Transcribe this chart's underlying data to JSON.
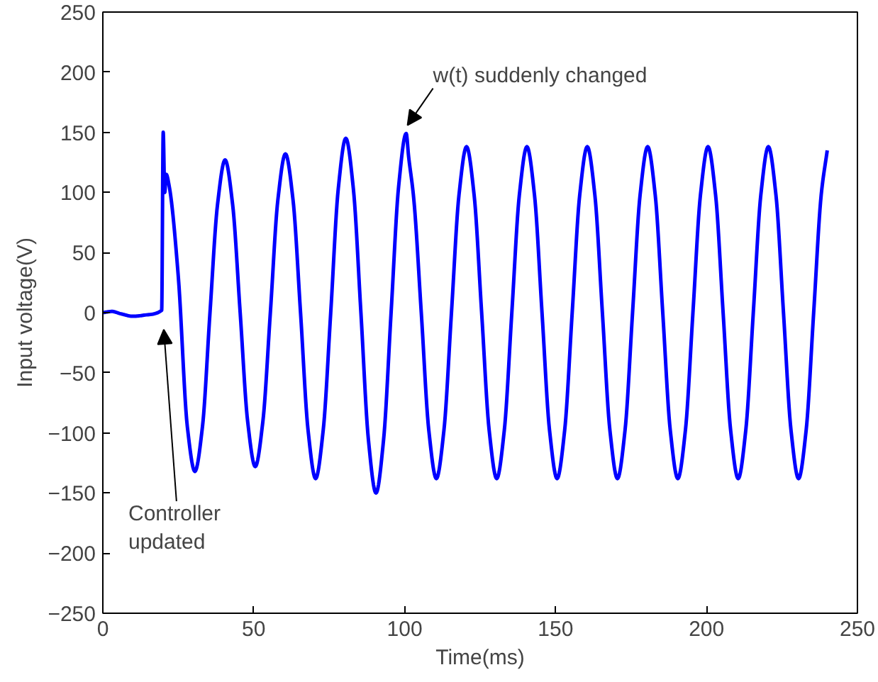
{
  "chart_data": {
    "type": "line",
    "xlabel": "Time(ms)",
    "ylabel": "Input voltage(V)",
    "xlim": [
      0,
      250
    ],
    "ylim": [
      -250,
      250
    ],
    "xticks": [
      0,
      50,
      100,
      150,
      200,
      250
    ],
    "yticks": [
      -250,
      -200,
      -150,
      -100,
      -50,
      0,
      50,
      100,
      150,
      200,
      250
    ],
    "grid": false,
    "marker": "none",
    "line_style": "solid",
    "series": [
      {
        "color": "#0000ff",
        "x": [
          0,
          3,
          6,
          10,
          14,
          19.5,
          20,
          20.5,
          21,
          22,
          25,
          28,
          30.5,
          33,
          35.5,
          38,
          40.5,
          43,
          45.5,
          48,
          50.5,
          53,
          55.5,
          58,
          60.5,
          63,
          65.5,
          68,
          70.5,
          73,
          75.5,
          78,
          80.5,
          83,
          85.5,
          88,
          90.5,
          93,
          95.5,
          98,
          100.5,
          101.3,
          103,
          105.5,
          108,
          110.5,
          113,
          115.5,
          118,
          120.5,
          123,
          125.5,
          128,
          130.5,
          133,
          135.5,
          138,
          140.5,
          143,
          145.5,
          148,
          150.5,
          153,
          155.5,
          158,
          160.5,
          163,
          165.5,
          168,
          170.5,
          173,
          175.5,
          178,
          180.5,
          183,
          185.5,
          188,
          190.5,
          193,
          195.5,
          198,
          200.5,
          203,
          205.5,
          208,
          210.5,
          213,
          215.5,
          218,
          220.5,
          223,
          225.5,
          228,
          230.5,
          233,
          235.5,
          238,
          240
        ],
        "values": [
          0,
          1,
          -1,
          -3,
          -2,
          2,
          150,
          100,
          115,
          105,
          30,
          -95,
          -132,
          -95,
          0,
          90,
          127,
          90,
          0,
          -91,
          -128,
          -91,
          0,
          94,
          132,
          94,
          0,
          -98,
          -138,
          -98,
          0,
          103,
          145,
          103,
          0,
          -106,
          -150,
          -106,
          0,
          105,
          149,
          130,
          95,
          0,
          -98,
          -138,
          -98,
          0,
          98,
          138,
          98,
          0,
          -98,
          -138,
          -98,
          0,
          98,
          138,
          98,
          0,
          -98,
          -138,
          -98,
          0,
          98,
          138,
          98,
          0,
          -98,
          -138,
          -98,
          0,
          98,
          138,
          98,
          0,
          -98,
          -138,
          -98,
          0,
          98,
          138,
          98,
          0,
          -98,
          -138,
          -98,
          0,
          98,
          138,
          98,
          0,
          -98,
          -138,
          -98,
          0,
          98,
          135
        ]
      }
    ],
    "annotations": [
      "Controller\nupdated",
      {
        "text": "w(t) suddenly changed",
        "x": 100,
        "y": 150
      }
    ]
  }
}
